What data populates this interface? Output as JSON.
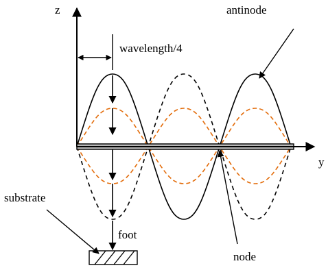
{
  "labels": {
    "z_axis": "z",
    "y_axis": "y",
    "wavelength": "wavelength/4",
    "antinode": "antinode",
    "substrate": "substrate",
    "foot": "foot",
    "node": "node"
  },
  "colors": {
    "outer_wave": "#000000",
    "inner_wave": "#e36c0a",
    "beam_fill": "#b8b8b8",
    "line": "#000000"
  }
}
